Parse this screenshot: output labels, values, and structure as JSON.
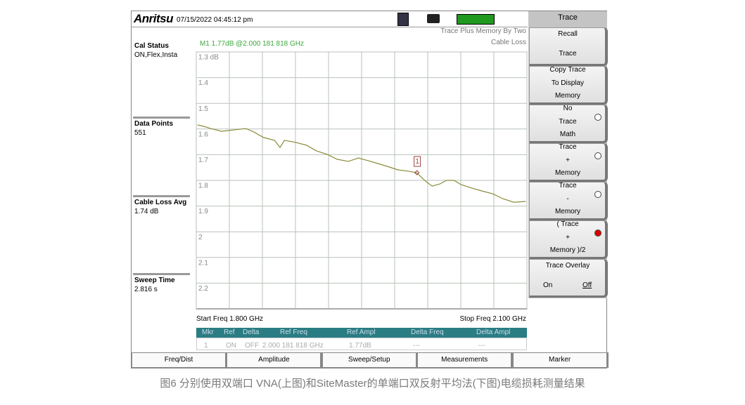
{
  "header": {
    "logo": "Anritsu",
    "timestamp": "07/15/2022 04:45:12 pm"
  },
  "left_panel": [
    {
      "label": "Cal Status",
      "value": "ON,Flex,Insta"
    },
    {
      "label": "Data Points",
      "value": "551"
    },
    {
      "label": "Cable Loss Avg",
      "value": "1.74 dB"
    },
    {
      "label": "Sweep Time",
      "value": "2.816 s"
    }
  ],
  "chart_data": {
    "type": "line",
    "mode": "Trace Plus Memory By Two",
    "measurement": "Cable Loss",
    "marker_readout": "M1 1.77dB @2.000 181 818 GHz",
    "start_label": "Start Freq 1.800 GHz",
    "stop_label": "Stop Freq 2.100 GHz",
    "x": [
      1.801,
      1.807,
      1.813,
      1.823,
      1.829,
      1.839,
      1.845,
      1.852,
      1.861,
      1.871,
      1.876,
      1.88,
      1.89,
      1.9,
      1.909,
      1.919,
      1.928,
      1.938,
      1.947,
      1.954,
      1.963,
      1.973,
      1.983,
      1.992,
      2.0,
      2.008,
      2.014,
      2.021,
      2.027,
      2.034,
      2.04,
      2.05,
      2.059,
      2.069,
      2.078,
      2.088,
      2.099
    ],
    "values": [
      1.584,
      1.59,
      1.598,
      1.609,
      1.606,
      1.601,
      1.598,
      1.611,
      1.633,
      1.644,
      1.672,
      1.644,
      1.652,
      1.663,
      1.685,
      1.699,
      1.718,
      1.726,
      1.713,
      1.721,
      1.732,
      1.745,
      1.759,
      1.764,
      1.77,
      1.803,
      1.822,
      1.814,
      1.8,
      1.8,
      1.816,
      1.83,
      1.841,
      1.852,
      1.871,
      1.885,
      1.882
    ],
    "color": "#8c8a3c",
    "xlim": [
      1.8,
      2.1
    ],
    "ylim": [
      2.3,
      1.3
    ],
    "xticks": [
      1.8,
      1.83,
      1.86,
      1.89,
      1.92,
      1.95,
      1.98,
      2.01,
      2.04,
      2.07,
      2.1
    ],
    "yticks": [
      {
        "value": 1.3,
        "label": "1.3 dB"
      },
      1.4,
      1.5,
      1.6,
      1.7,
      1.8,
      1.9,
      2.0,
      2.1,
      2.2
    ],
    "grid": true,
    "markers": [
      {
        "label": "1",
        "x": 2.000181818,
        "y": 1.77
      }
    ]
  },
  "marker_table": {
    "headers": [
      "Mkr",
      "Ref",
      "Delta",
      "Ref Freq",
      "Ref Ampl",
      "Delta Freq",
      "Delta Ampl"
    ],
    "rows": [
      [
        "1",
        "ON",
        "OFF",
        "2.000 181 818 GHz",
        "1.77dB",
        "---",
        "---"
      ]
    ]
  },
  "softkeys": {
    "title": "Trace",
    "buttons": [
      {
        "lines": [
          "Recall",
          "Trace"
        ]
      },
      {
        "lines": [
          "Copy Trace",
          "To Display",
          "Memory"
        ]
      },
      {
        "lines": [
          "No",
          "Trace",
          "Math"
        ],
        "radio": true,
        "selected": false
      },
      {
        "lines": [
          "Trace",
          "+",
          "Memory"
        ],
        "radio": true,
        "selected": false
      },
      {
        "lines": [
          "Trace",
          "-",
          "Memory"
        ],
        "radio": true,
        "selected": false
      },
      {
        "lines": [
          "( Trace",
          "+",
          "Memory )/2"
        ],
        "radio": true,
        "selected": true
      },
      {
        "lines": [
          "Trace Overlay"
        ],
        "options": [
          "On",
          "Off"
        ]
      }
    ]
  },
  "tabs": [
    "Freq/Dist",
    "Amplitude",
    "Sweep/Setup",
    "Measurements",
    "Marker"
  ],
  "caption": "图6  分别使用双端口 VNA(上图)和SiteMaster的单端口双反射平均法(下图)电缆损耗测量结果"
}
